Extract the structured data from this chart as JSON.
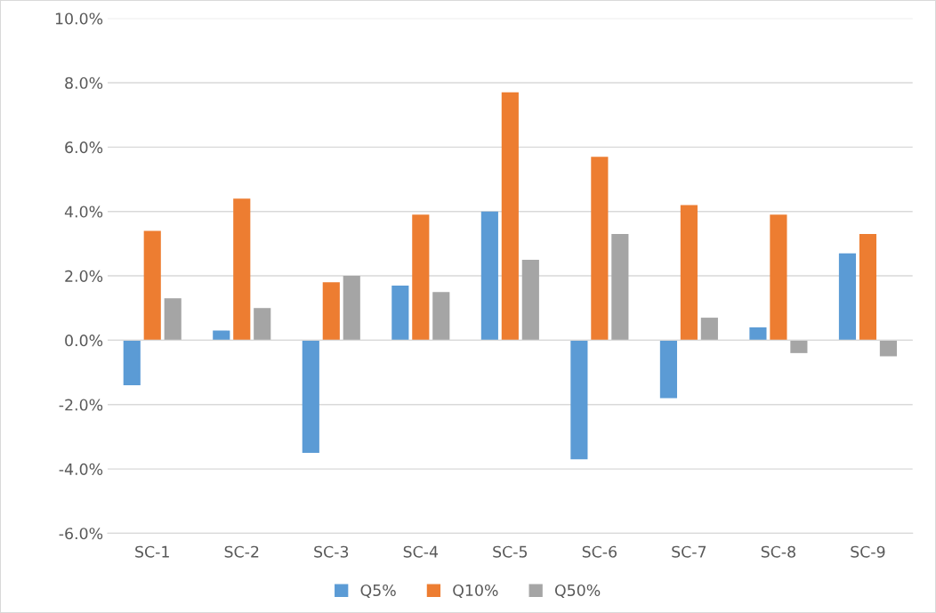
{
  "chart_data": {
    "type": "bar",
    "categories": [
      "SC-1",
      "SC-2",
      "SC-3",
      "SC-4",
      "SC-5",
      "SC-6",
      "SC-7",
      "SC-8",
      "SC-9"
    ],
    "series": [
      {
        "name": "Q5%",
        "color": "#5b9bd5",
        "values": [
          -1.4,
          0.3,
          -3.5,
          1.7,
          4.0,
          -3.7,
          -1.8,
          0.4,
          2.7
        ]
      },
      {
        "name": "Q10%",
        "color": "#ed7d31",
        "values": [
          3.4,
          4.4,
          1.8,
          3.9,
          7.7,
          5.7,
          4.2,
          3.9,
          3.3
        ]
      },
      {
        "name": "Q50%",
        "color": "#a5a5a5",
        "values": [
          1.3,
          1.0,
          2.0,
          1.5,
          2.5,
          3.3,
          0.7,
          -0.4,
          -0.5
        ]
      }
    ],
    "ylim": [
      -6,
      10
    ],
    "yticks": [
      {
        "value": -6,
        "label": "-6.0%"
      },
      {
        "value": -4,
        "label": "-4.0%"
      },
      {
        "value": -2,
        "label": "-2.0%"
      },
      {
        "value": 0,
        "label": "0.0%"
      },
      {
        "value": 2,
        "label": "2.0%"
      },
      {
        "value": 4,
        "label": "4.0%"
      },
      {
        "value": 6,
        "label": "6.0%"
      },
      {
        "value": 8,
        "label": "8.0%"
      },
      {
        "value": 10,
        "label": "10.0%"
      }
    ],
    "grid": "y",
    "legend": "bottom"
  }
}
